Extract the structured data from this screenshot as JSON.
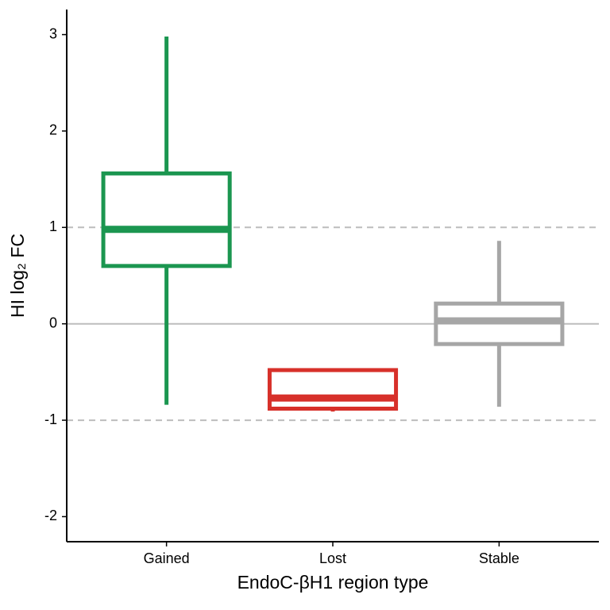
{
  "chart_data": {
    "type": "box",
    "x_label": "EndoC-βH1 region type",
    "y_label": "HI log₂ FC",
    "categories": [
      "Gained",
      "Lost",
      "Stable"
    ],
    "colors": [
      "#1b9650",
      "#d7302a",
      "#a6a6a6"
    ],
    "min": [
      -0.84,
      -0.91,
      -0.86
    ],
    "q1": [
      0.6,
      -0.88,
      -0.21
    ],
    "median": [
      0.98,
      -0.77,
      0.03
    ],
    "q3": [
      1.56,
      -0.48,
      0.21
    ],
    "max": [
      2.98,
      -0.48,
      0.86
    ],
    "ylim": [
      -2.26,
      3.26
    ],
    "yticks": [
      -2,
      -1,
      0,
      1,
      2,
      3
    ],
    "reference_lines": [
      {
        "value": 1,
        "style": "dashed"
      },
      {
        "value": 0,
        "style": "solid"
      },
      {
        "value": -1,
        "style": "dashed"
      }
    ]
  }
}
